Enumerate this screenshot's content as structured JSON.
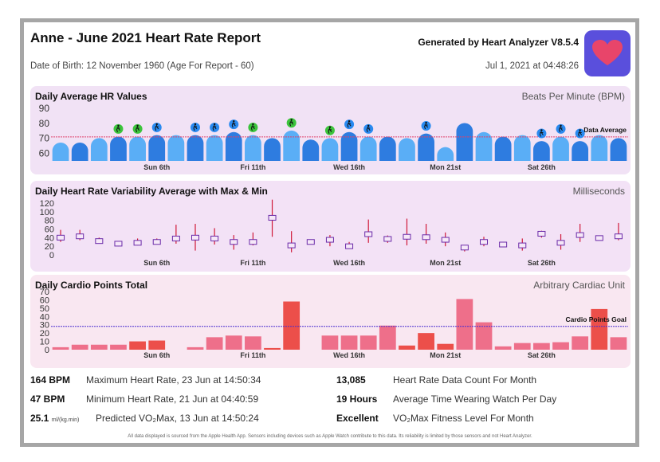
{
  "header": {
    "title": "Anne - June 2021 Heart Rate Report",
    "dob": "Date of Birth: 12 November 1960 (Age For Report -  60)",
    "generated": "Generated by Heart Analyzer V8.5.4",
    "generated_at": "Jul 1, 2021 at 04:48:26",
    "app_icon": "heart-icon",
    "icon_color": "#e8456a",
    "icon_bg": "#5a4fdc"
  },
  "chart_data": [
    {
      "type": "bar",
      "title": "Daily Average HR Values",
      "ylabel": "Beats Per Minute (BPM)",
      "yticks": [
        60,
        70,
        80,
        90
      ],
      "ylim": [
        55,
        90
      ],
      "x_ticklabels": [
        {
          "day": 6,
          "label": "Sun 6th"
        },
        {
          "day": 11,
          "label": "Fri 11th"
        },
        {
          "day": 16,
          "label": "Wed 16th"
        },
        {
          "day": 21,
          "label": "Mon 21st"
        },
        {
          "day": 26,
          "label": "Sat 26th"
        }
      ],
      "days": [
        1,
        2,
        3,
        4,
        5,
        6,
        7,
        8,
        9,
        10,
        11,
        12,
        13,
        14,
        15,
        16,
        17,
        18,
        19,
        20,
        21,
        22,
        23,
        24,
        25,
        26,
        27,
        28,
        29,
        30
      ],
      "values": [
        67,
        67,
        70,
        71,
        71,
        72,
        72,
        72,
        72,
        74,
        72,
        70,
        75,
        69,
        70,
        74,
        71,
        71,
        70,
        73,
        64,
        80,
        74,
        71,
        72,
        68,
        71,
        68,
        72,
        70
      ],
      "reference_line": {
        "label": "Data Average",
        "value": 71
      },
      "activity_markers": [
        {
          "day": 4,
          "type": "walk",
          "color": "#3cc43c"
        },
        {
          "day": 5,
          "type": "walk",
          "color": "#3cc43c"
        },
        {
          "day": 6,
          "type": "walk",
          "color": "#2a8af0"
        },
        {
          "day": 8,
          "type": "walk",
          "color": "#2a8af0"
        },
        {
          "day": 9,
          "type": "walk",
          "color": "#2a8af0"
        },
        {
          "day": 10,
          "type": "walk",
          "color": "#2a8af0"
        },
        {
          "day": 11,
          "type": "walk",
          "color": "#3cc43c"
        },
        {
          "day": 13,
          "type": "walk",
          "color": "#3cc43c"
        },
        {
          "day": 15,
          "type": "walk",
          "color": "#3cc43c"
        },
        {
          "day": 16,
          "type": "walk",
          "color": "#2a8af0"
        },
        {
          "day": 17,
          "type": "walk",
          "color": "#2a8af0"
        },
        {
          "day": 20,
          "type": "walk",
          "color": "#2a8af0"
        },
        {
          "day": 26,
          "type": "walk",
          "color": "#2a8af0"
        },
        {
          "day": 27,
          "type": "walk",
          "color": "#2a8af0"
        },
        {
          "day": 28,
          "type": "walk",
          "color": "#2a8af0"
        }
      ],
      "colors": {
        "bar_light": "#5aaef6",
        "bar_dark": "#2e7ce0",
        "line": "#e0406a"
      }
    },
    {
      "type": "box",
      "title": "Daily Heart Rate Variability Average with Max & Min",
      "ylabel": "Milliseconds",
      "yticks": [
        0,
        20,
        40,
        60,
        80,
        100,
        120
      ],
      "ylim": [
        0,
        120
      ],
      "x_ticklabels": [
        {
          "day": 6,
          "label": "Sun 6th"
        },
        {
          "day": 11,
          "label": "Fri 11th"
        },
        {
          "day": 16,
          "label": "Wed 16th"
        },
        {
          "day": 21,
          "label": "Mon 21st"
        },
        {
          "day": 26,
          "label": "Sat 26th"
        }
      ],
      "days": [
        1,
        2,
        3,
        4,
        5,
        6,
        7,
        8,
        9,
        10,
        11,
        12,
        13,
        14,
        15,
        16,
        17,
        18,
        19,
        20,
        21,
        22,
        23,
        24,
        25,
        26,
        27,
        28,
        29,
        30
      ],
      "avg": [
        40,
        43,
        32,
        26,
        28,
        30,
        38,
        40,
        38,
        30,
        30,
        86,
        22,
        30,
        35,
        20,
        48,
        37,
        42,
        41,
        35,
        17,
        30,
        24,
        22,
        49,
        28,
        46,
        39,
        43
      ],
      "max": [
        58,
        58,
        40,
        32,
        38,
        38,
        70,
        72,
        62,
        46,
        52,
        128,
        55,
        34,
        46,
        30,
        82,
        45,
        84,
        72,
        52,
        22,
        42,
        30,
        38,
        56,
        48,
        72,
        44,
        74
      ],
      "min": [
        30,
        34,
        26,
        20,
        22,
        26,
        26,
        10,
        24,
        12,
        22,
        42,
        6,
        28,
        20,
        14,
        28,
        28,
        22,
        26,
        20,
        8,
        20,
        18,
        10,
        40,
        12,
        30,
        34,
        34
      ],
      "colors": {
        "whisker": "#d01a3a",
        "box": "#6a2aa8"
      }
    },
    {
      "type": "bar",
      "title": "Daily Cardio Points Total",
      "ylabel": "Arbitrary Cardiac Unit",
      "yticks": [
        0,
        10,
        20,
        30,
        40,
        50,
        60,
        70
      ],
      "ylim": [
        0,
        70
      ],
      "x_ticklabels": [
        {
          "day": 6,
          "label": "Sun 6th"
        },
        {
          "day": 11,
          "label": "Fri 11th"
        },
        {
          "day": 16,
          "label": "Wed 16th"
        },
        {
          "day": 21,
          "label": "Mon 21st"
        },
        {
          "day": 26,
          "label": "Sat 26th"
        }
      ],
      "days": [
        1,
        2,
        3,
        4,
        5,
        6,
        7,
        8,
        9,
        10,
        11,
        12,
        13,
        14,
        15,
        16,
        17,
        18,
        19,
        20,
        21,
        22,
        23,
        24,
        25,
        26,
        27,
        28,
        29,
        30
      ],
      "values": [
        3,
        6,
        6,
        6,
        10,
        11,
        0,
        3,
        15,
        17,
        16,
        2,
        58,
        0,
        17,
        17,
        17,
        29,
        5,
        20,
        7,
        61,
        33,
        4,
        8,
        8,
        9,
        16,
        49,
        15
      ],
      "highlight_days": [
        5,
        6,
        12,
        13,
        19,
        20,
        21,
        29
      ],
      "reference_line": {
        "label": "Cardio Points Goal",
        "value": 28
      },
      "colors": {
        "bar": "#ee6f8a",
        "bar_dark": "#ec4f4a",
        "line": "#4a2fd0"
      }
    }
  ],
  "stats": [
    {
      "value": "164 BPM",
      "desc": "Maximum Heart Rate, 23 Jun at 14:50:34"
    },
    {
      "value": "47 BPM",
      "desc": "Minimum Heart Rate, 21 Jun at 04:40:59"
    },
    {
      "value": "25.1",
      "unit": "ml/(kg.min)",
      "desc": "Predicted VO₂Max, 13 Jun at 14:50:24"
    },
    {
      "value": "13,085",
      "desc": "Heart Rate Data Count For Month"
    },
    {
      "value": "19 Hours",
      "desc": "Average Time Wearing Watch Per Day"
    },
    {
      "value": "Excellent",
      "desc": "VO₂Max Fitness Level For Month"
    }
  ],
  "footer": "All data displayed is sourced from the Apple Health App. Sensors including devices such as Apple Watch contribute to this data. Its reliability is limited by those sensors and not Heart Analyzer."
}
